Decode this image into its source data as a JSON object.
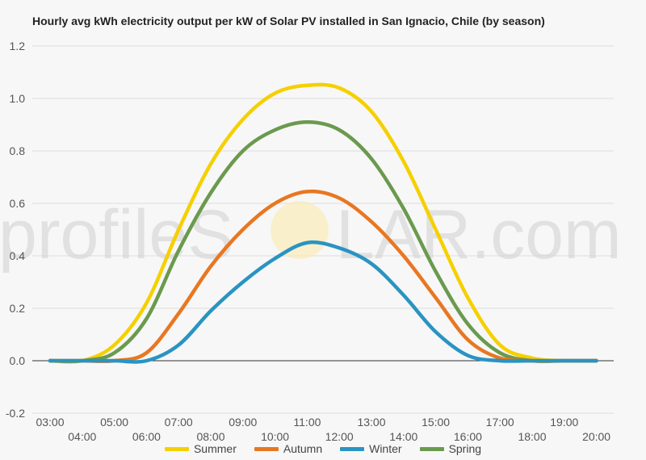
{
  "title": "Hourly avg kWh electricity output per kW of Solar PV installed in San Ignacio, Chile (by season)",
  "watermark": {
    "left": "profileS",
    "right": "LAR.com",
    "sun_color": "#fde9a8"
  },
  "chart_data": {
    "type": "line",
    "title": "Hourly avg kWh electricity output per kW of Solar PV installed in San Ignacio, Chile (by season)",
    "x": [
      "03:00",
      "04:00",
      "05:00",
      "06:00",
      "07:00",
      "08:00",
      "09:00",
      "10:00",
      "11:00",
      "12:00",
      "13:00",
      "14:00",
      "15:00",
      "16:00",
      "17:00",
      "18:00",
      "19:00",
      "20:00"
    ],
    "ylim": [
      -0.2,
      1.2
    ],
    "yticks": [
      "1.2",
      "1.0",
      "0.8",
      "0.6",
      "0.4",
      "0.2",
      "0.0",
      "-0.2"
    ],
    "ytick_values": [
      1.2,
      1.0,
      0.8,
      0.6,
      0.4,
      0.2,
      0.0,
      -0.2
    ],
    "grid": true,
    "legend_position": "bottom",
    "series": [
      {
        "name": "Summer",
        "color": "#f5d000",
        "values": [
          0.0,
          0.0,
          0.06,
          0.22,
          0.5,
          0.75,
          0.92,
          1.02,
          1.05,
          1.04,
          0.95,
          0.76,
          0.5,
          0.24,
          0.06,
          0.01,
          0.0,
          0.0
        ]
      },
      {
        "name": "Autumn",
        "color": "#e87722",
        "values": [
          0.0,
          0.0,
          0.0,
          0.03,
          0.18,
          0.36,
          0.5,
          0.6,
          0.645,
          0.62,
          0.53,
          0.4,
          0.24,
          0.08,
          0.01,
          0.0,
          0.0,
          0.0
        ]
      },
      {
        "name": "Winter",
        "color": "#2994c2",
        "values": [
          0.0,
          0.0,
          0.0,
          0.0,
          0.06,
          0.19,
          0.3,
          0.39,
          0.45,
          0.43,
          0.37,
          0.25,
          0.11,
          0.02,
          0.0,
          0.0,
          0.0,
          0.0
        ]
      },
      {
        "name": "Spring",
        "color": "#6a9a4e",
        "values": [
          0.0,
          0.0,
          0.03,
          0.16,
          0.42,
          0.64,
          0.8,
          0.88,
          0.91,
          0.88,
          0.77,
          0.58,
          0.34,
          0.14,
          0.03,
          0.0,
          0.0,
          0.0
        ]
      }
    ]
  }
}
